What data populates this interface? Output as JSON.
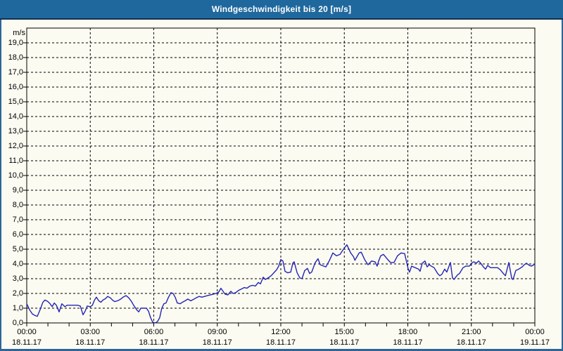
{
  "window": {
    "title": "Windgeschwindigkeit bis 20 [m/s]"
  },
  "colors": {
    "titlebar_bg": "#1f689e",
    "titlebar_text": "#ffffff",
    "titlebar_underline": "#15304b",
    "outer_border": "#2d6598",
    "background": "#fbfbf2",
    "grid": "#000000",
    "axis": "#000000",
    "series_line": "#2424b4",
    "label_text": "#000000"
  },
  "chart_data": {
    "type": "line",
    "title": "Windgeschwindigkeit bis 20 [m/s]",
    "y_unit_label": "m/s",
    "ylim": [
      0,
      20
    ],
    "grid": "dashed",
    "legend": "none",
    "ytick_values": [
      0,
      1,
      2,
      3,
      4,
      5,
      6,
      7,
      8,
      9,
      10,
      11,
      12,
      13,
      14,
      15,
      16,
      17,
      18,
      19
    ],
    "ytick_labels": [
      "0,0",
      "1,0",
      "2,0",
      "3,0",
      "4,0",
      "5,0",
      "6,0",
      "7,0",
      "8,0",
      "9,0",
      "10,0",
      "11,0",
      "12,0",
      "13,0",
      "14,0",
      "15,0",
      "16,0",
      "17,0",
      "18,0",
      "19,0"
    ],
    "x_unit": "hours",
    "xlim": [
      0,
      24
    ],
    "grid_hours": [
      3,
      6,
      9,
      12,
      15,
      18,
      21
    ],
    "minor_tick_every_hours": 1,
    "xticks": [
      {
        "hour": 0,
        "time": "00:00",
        "date": "18.11.17"
      },
      {
        "hour": 3,
        "time": "03:00",
        "date": "18.11.17"
      },
      {
        "hour": 6,
        "time": "06:00",
        "date": "18.11.17"
      },
      {
        "hour": 9,
        "time": "09:00",
        "date": "18.11.17"
      },
      {
        "hour": 12,
        "time": "12:00",
        "date": "18.11.17"
      },
      {
        "hour": 15,
        "time": "15:00",
        "date": "18.11.17"
      },
      {
        "hour": 18,
        "time": "18:00",
        "date": "18.11.17"
      },
      {
        "hour": 21,
        "time": "21:00",
        "date": "18.11.17"
      },
      {
        "hour": 24,
        "time": "00:00",
        "date": "19.11.17"
      }
    ],
    "series": [
      {
        "name": "Windgeschwindigkeit",
        "color": "#2424b4",
        "points": [
          [
            0,
            1.3
          ],
          [
            0.13,
            0.9
          ],
          [
            0.27,
            0.6
          ],
          [
            0.4,
            0.5
          ],
          [
            0.5,
            0.45
          ],
          [
            0.63,
            0.9
          ],
          [
            0.76,
            1.4
          ],
          [
            0.86,
            1.55
          ],
          [
            1.0,
            1.45
          ],
          [
            1.1,
            1.3
          ],
          [
            1.2,
            1.1
          ],
          [
            1.3,
            1.35
          ],
          [
            1.4,
            1.2
          ],
          [
            1.53,
            0.75
          ],
          [
            1.66,
            1.3
          ],
          [
            1.8,
            1.1
          ],
          [
            1.9,
            1.2
          ],
          [
            2.06,
            1.2
          ],
          [
            2.23,
            1.2
          ],
          [
            2.4,
            1.2
          ],
          [
            2.53,
            1.15
          ],
          [
            2.66,
            0.55
          ],
          [
            2.76,
            0.8
          ],
          [
            2.86,
            1.15
          ],
          [
            3.0,
            1.1
          ],
          [
            3.1,
            1.2
          ],
          [
            3.2,
            1.55
          ],
          [
            3.29,
            1.75
          ],
          [
            3.4,
            1.5
          ],
          [
            3.5,
            1.4
          ],
          [
            3.6,
            1.55
          ],
          [
            3.72,
            1.65
          ],
          [
            3.82,
            1.8
          ],
          [
            3.95,
            1.7
          ],
          [
            4.05,
            1.55
          ],
          [
            4.15,
            1.45
          ],
          [
            4.29,
            1.5
          ],
          [
            4.42,
            1.6
          ],
          [
            4.55,
            1.75
          ],
          [
            4.69,
            1.85
          ],
          [
            4.82,
            1.7
          ],
          [
            4.95,
            1.45
          ],
          [
            5.05,
            1.2
          ],
          [
            5.19,
            0.9
          ],
          [
            5.29,
            0.75
          ],
          [
            5.39,
            1.0
          ],
          [
            5.52,
            1.0
          ],
          [
            5.65,
            1.0
          ],
          [
            5.75,
            0.8
          ],
          [
            5.85,
            0.35
          ],
          [
            5.95,
            0.05
          ],
          [
            6.08,
            0.0
          ],
          [
            6.18,
            0.1
          ],
          [
            6.28,
            0.35
          ],
          [
            6.38,
            1.0
          ],
          [
            6.48,
            1.3
          ],
          [
            6.58,
            1.35
          ],
          [
            6.68,
            1.7
          ],
          [
            6.81,
            2.05
          ],
          [
            6.91,
            2.0
          ],
          [
            7.01,
            1.75
          ],
          [
            7.11,
            1.35
          ],
          [
            7.25,
            1.3
          ],
          [
            7.35,
            1.4
          ],
          [
            7.48,
            1.5
          ],
          [
            7.61,
            1.62
          ],
          [
            7.75,
            1.5
          ],
          [
            7.88,
            1.6
          ],
          [
            8.0,
            1.7
          ],
          [
            8.14,
            1.8
          ],
          [
            8.27,
            1.75
          ],
          [
            8.41,
            1.8
          ],
          [
            8.54,
            1.85
          ],
          [
            8.68,
            1.9
          ],
          [
            8.81,
            1.95
          ],
          [
            8.94,
            2.0
          ],
          [
            9.07,
            2.1
          ],
          [
            9.17,
            2.35
          ],
          [
            9.27,
            2.15
          ],
          [
            9.37,
            1.95
          ],
          [
            9.5,
            1.9
          ],
          [
            9.64,
            2.15
          ],
          [
            9.74,
            2.0
          ],
          [
            9.87,
            2.05
          ],
          [
            10.0,
            2.2
          ],
          [
            10.14,
            2.3
          ],
          [
            10.27,
            2.4
          ],
          [
            10.4,
            2.35
          ],
          [
            10.54,
            2.5
          ],
          [
            10.67,
            2.55
          ],
          [
            10.8,
            2.5
          ],
          [
            10.94,
            2.75
          ],
          [
            11.04,
            2.65
          ],
          [
            11.17,
            3.1
          ],
          [
            11.27,
            2.95
          ],
          [
            11.4,
            3.05
          ],
          [
            11.54,
            3.2
          ],
          [
            11.67,
            3.4
          ],
          [
            11.8,
            3.6
          ],
          [
            11.9,
            3.85
          ],
          [
            12.0,
            4.3
          ],
          [
            12.1,
            4.2
          ],
          [
            12.2,
            3.5
          ],
          [
            12.33,
            3.4
          ],
          [
            12.47,
            3.45
          ],
          [
            12.57,
            4.05
          ],
          [
            12.63,
            4.15
          ],
          [
            12.77,
            3.4
          ],
          [
            12.9,
            3.05
          ],
          [
            13.0,
            3.0
          ],
          [
            13.13,
            3.55
          ],
          [
            13.26,
            3.7
          ],
          [
            13.36,
            3.35
          ],
          [
            13.46,
            3.45
          ],
          [
            13.63,
            4.1
          ],
          [
            13.76,
            4.35
          ],
          [
            13.86,
            3.95
          ],
          [
            14.03,
            3.85
          ],
          [
            14.13,
            3.8
          ],
          [
            14.3,
            4.25
          ],
          [
            14.46,
            4.75
          ],
          [
            14.63,
            4.55
          ],
          [
            14.8,
            4.65
          ],
          [
            14.96,
            5.0
          ],
          [
            15.12,
            5.3
          ],
          [
            15.3,
            4.75
          ],
          [
            15.43,
            4.5
          ],
          [
            15.5,
            4.25
          ],
          [
            15.7,
            4.75
          ],
          [
            15.8,
            4.8
          ],
          [
            15.96,
            4.3
          ],
          [
            16.12,
            3.95
          ],
          [
            16.29,
            4.2
          ],
          [
            16.45,
            4.15
          ],
          [
            16.55,
            3.85
          ],
          [
            16.62,
            4.2
          ],
          [
            16.72,
            4.55
          ],
          [
            16.85,
            4.65
          ],
          [
            17.02,
            4.35
          ],
          [
            17.18,
            4.1
          ],
          [
            17.35,
            4.1
          ],
          [
            17.51,
            4.55
          ],
          [
            17.68,
            4.75
          ],
          [
            17.85,
            4.7
          ],
          [
            18.02,
            3.65
          ],
          [
            18.08,
            3.45
          ],
          [
            18.18,
            3.85
          ],
          [
            18.35,
            3.75
          ],
          [
            18.51,
            3.65
          ],
          [
            18.58,
            3.5
          ],
          [
            18.68,
            4.05
          ],
          [
            18.81,
            4.2
          ],
          [
            18.91,
            3.8
          ],
          [
            19.01,
            3.95
          ],
          [
            19.11,
            3.85
          ],
          [
            19.24,
            3.75
          ],
          [
            19.41,
            3.35
          ],
          [
            19.51,
            3.2
          ],
          [
            19.61,
            3.3
          ],
          [
            19.74,
            3.65
          ],
          [
            19.84,
            3.45
          ],
          [
            20.01,
            4.1
          ],
          [
            20.11,
            3.05
          ],
          [
            20.18,
            2.95
          ],
          [
            20.34,
            3.25
          ],
          [
            20.44,
            3.35
          ],
          [
            20.61,
            3.75
          ],
          [
            20.74,
            3.85
          ],
          [
            20.91,
            3.85
          ],
          [
            21.01,
            4.05
          ],
          [
            21.11,
            4.15
          ],
          [
            21.24,
            4.05
          ],
          [
            21.34,
            4.2
          ],
          [
            21.44,
            4.05
          ],
          [
            21.57,
            3.8
          ],
          [
            21.67,
            3.65
          ],
          [
            21.77,
            3.9
          ],
          [
            21.91,
            3.75
          ],
          [
            22.07,
            3.75
          ],
          [
            22.24,
            3.75
          ],
          [
            22.37,
            3.6
          ],
          [
            22.51,
            3.35
          ],
          [
            22.61,
            3.2
          ],
          [
            22.77,
            4.1
          ],
          [
            22.91,
            3.0
          ],
          [
            22.97,
            2.95
          ],
          [
            23.1,
            3.55
          ],
          [
            23.24,
            3.65
          ],
          [
            23.4,
            3.8
          ],
          [
            23.5,
            3.95
          ],
          [
            23.6,
            4.05
          ],
          [
            23.74,
            3.9
          ],
          [
            23.84,
            3.85
          ],
          [
            24.0,
            4.0
          ]
        ]
      }
    ]
  }
}
